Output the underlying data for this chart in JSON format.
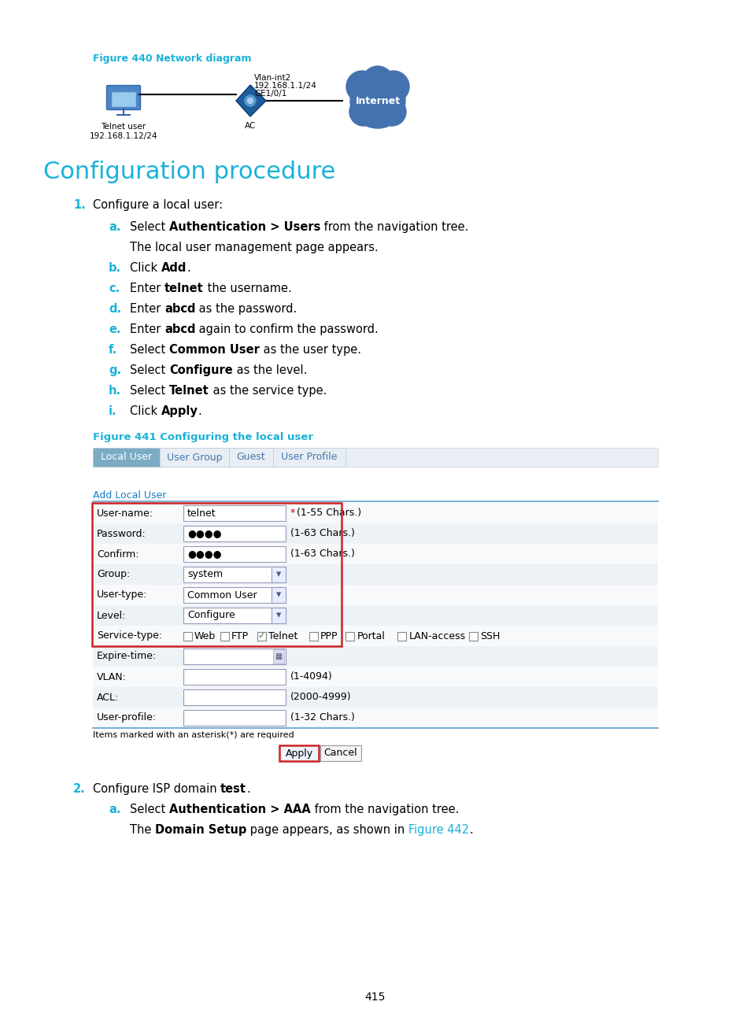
{
  "bg_color": "#ffffff",
  "fig_width": 9.54,
  "fig_height": 12.96,
  "dpi": 100,
  "cyan_color": "#1AB2D8",
  "body_color": "#000000",
  "fig440_caption": "Figure 440 Network diagram",
  "fig441_caption": "Figure 441 Configuring the local user",
  "section_title": "Configuration procedure",
  "tab_active_bg": "#7BACC4",
  "tab_active_fg": "#ffffff",
  "tab_inactive_bg": "#f0f0f0",
  "tab_inactive_fg": "#4477AA",
  "tab_border": "#cccccc",
  "form_red_border": "#CC2222",
  "form_line_color": "#7EB0D5",
  "hint_red": "#CC0000",
  "apply_border": "#CC2222",
  "apply_bg": "#EEF4FF",
  "cancel_border": "#999999",
  "cancel_bg": "#f5f5f5",
  "page_num": "415",
  "row_bg_even": "#f7f9fb",
  "row_bg_odd": "#edf2f7",
  "input_border": "#9999bb",
  "check_border": "#888888",
  "dropdown_bg": "#e8eeff",
  "alu_title_color": "#1A7EC4"
}
